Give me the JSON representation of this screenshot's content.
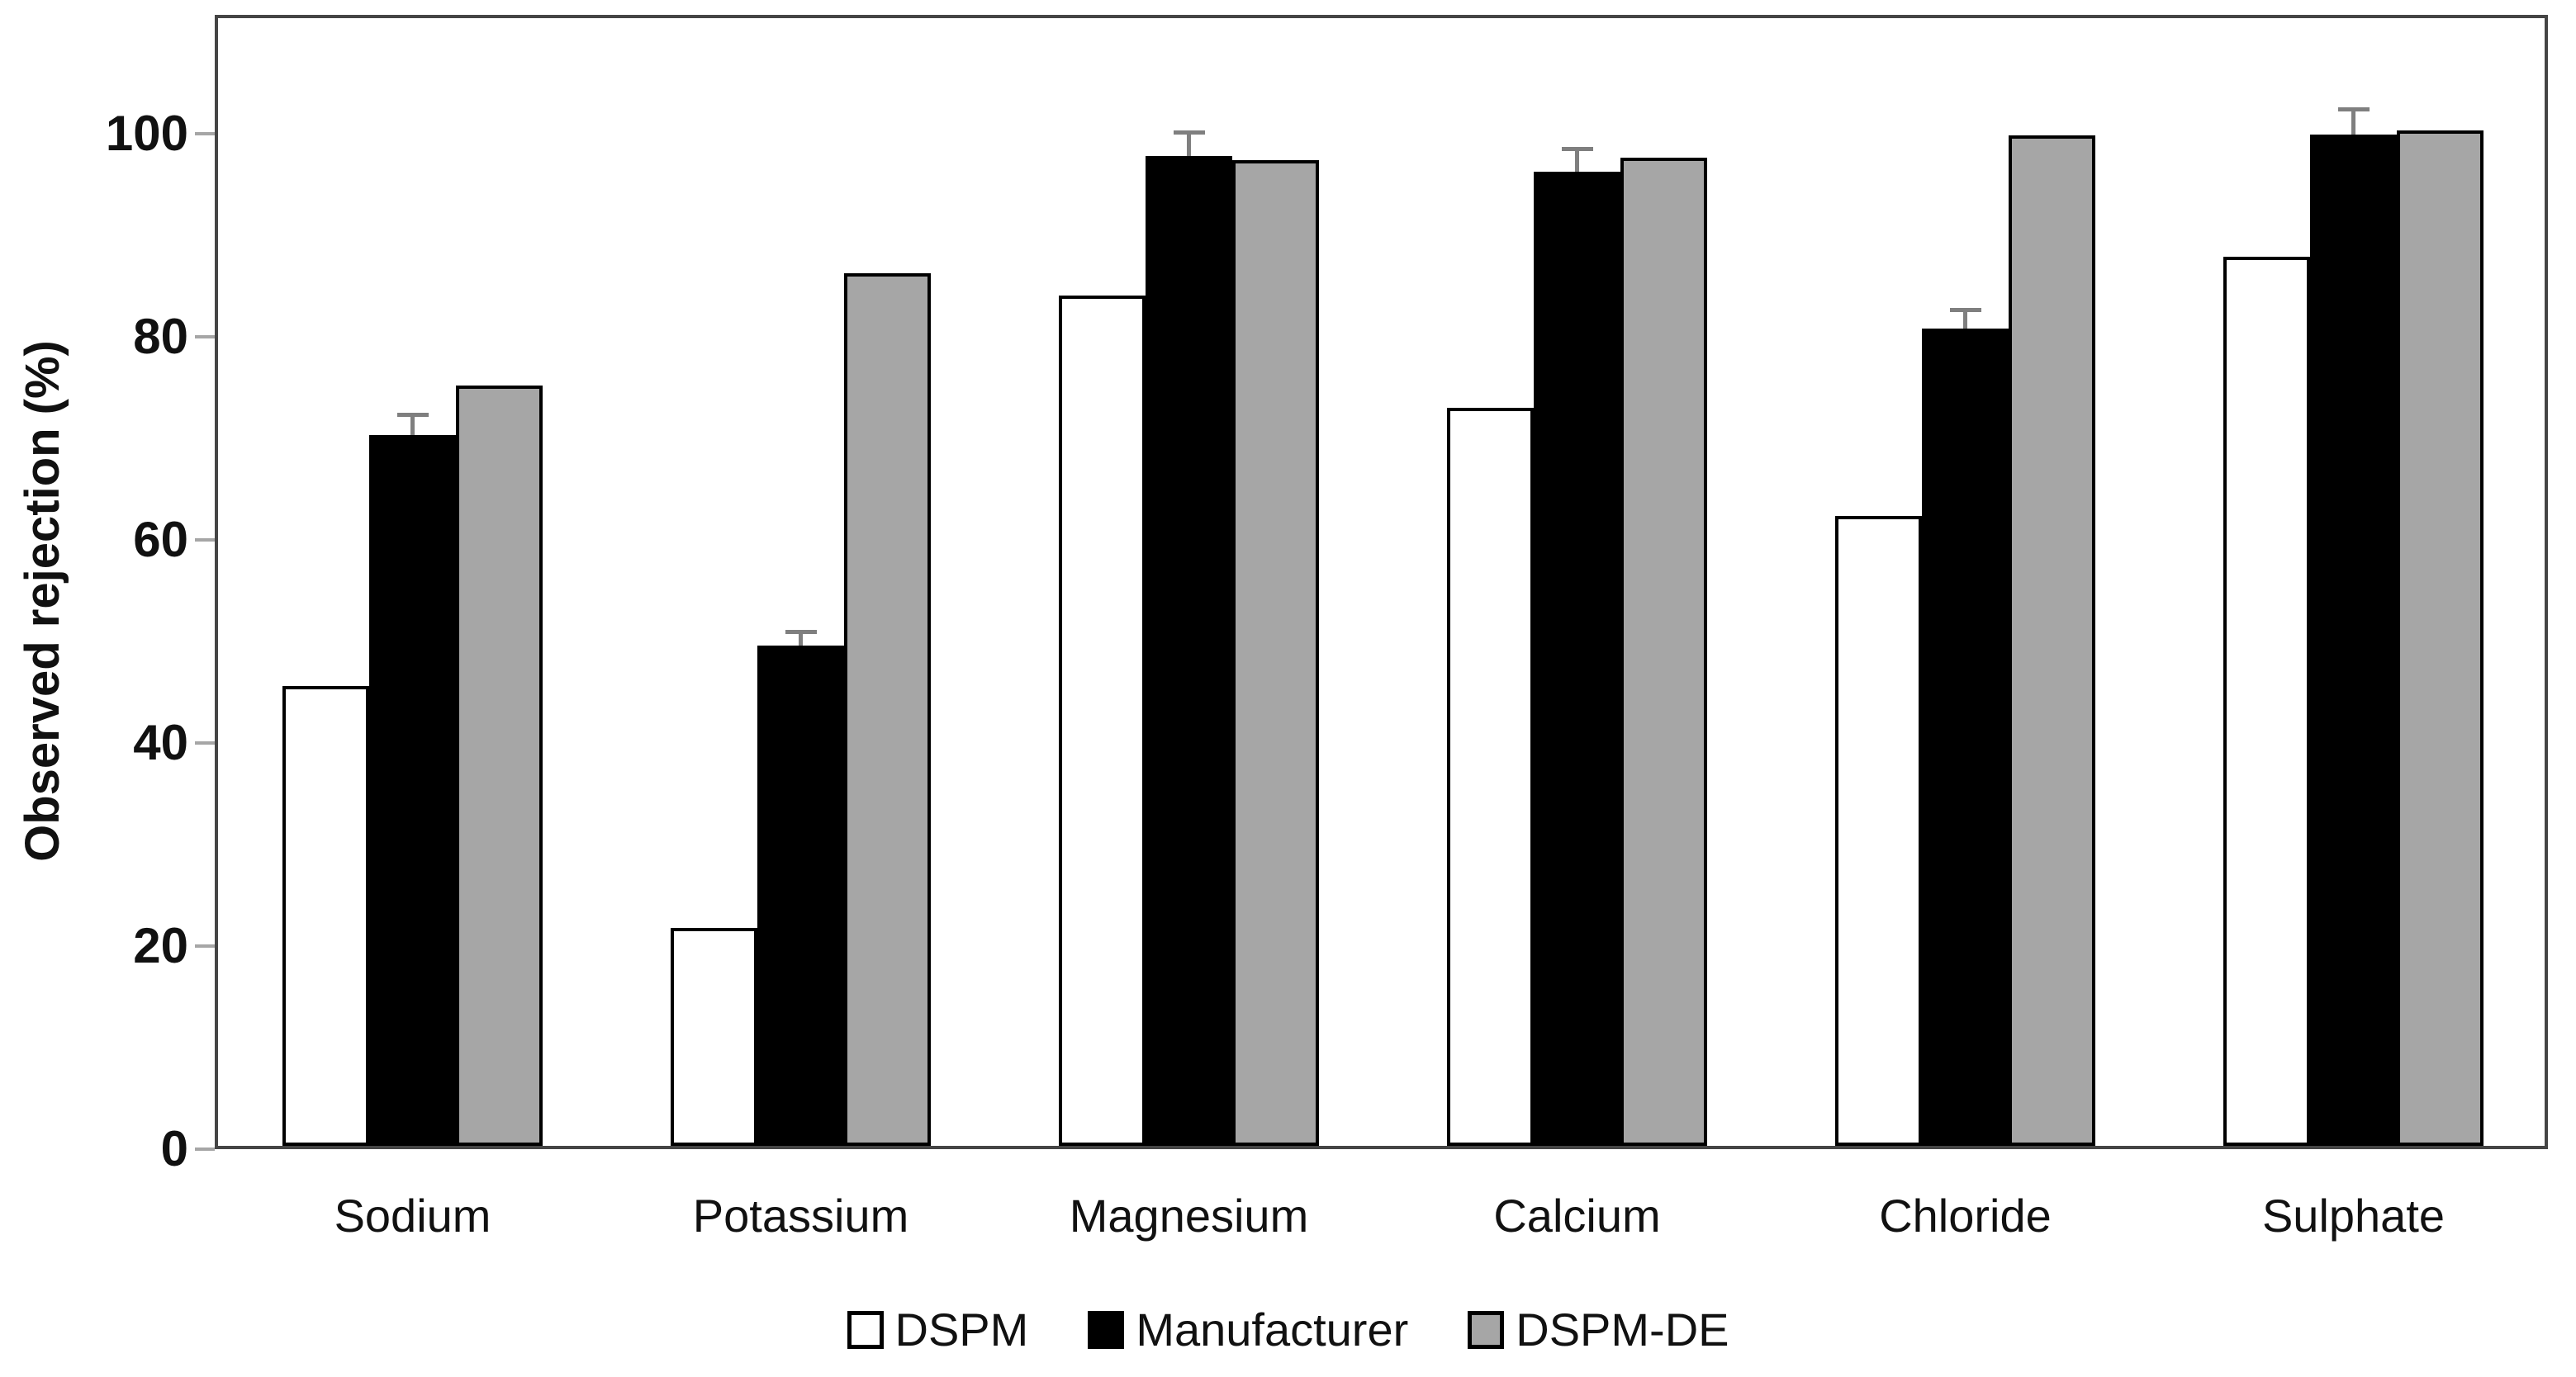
{
  "chart_data": {
    "type": "bar",
    "title": "",
    "xlabel": "",
    "ylabel": "Observed rejection (%)",
    "categories": [
      "Sodium",
      "Potassium",
      "Magnesium",
      "Calcium",
      "Chloride",
      "Sulphate"
    ],
    "series": [
      {
        "name": "DSPM",
        "fill": "#ffffff",
        "values": [
          45.3,
          21.5,
          83.7,
          72.7,
          62.0,
          87.6
        ]
      },
      {
        "name": "Manufacturer",
        "fill": "#000000",
        "values": [
          70.0,
          49.3,
          97.5,
          95.9,
          80.5,
          99.6
        ],
        "error_plus": [
          2.2,
          1.5,
          2.5,
          2.5,
          2.0,
          2.7
        ]
      },
      {
        "name": "DSPM-DE",
        "fill": "#a6a6a6",
        "values": [
          74.9,
          85.9,
          97.1,
          97.3,
          99.5,
          100.0
        ]
      }
    ],
    "yticks": [
      0,
      20,
      40,
      60,
      80,
      100
    ],
    "ytick_labels": [
      "0",
      "20",
      "40",
      "60",
      "80",
      "100"
    ],
    "ylim": [
      0,
      111
    ],
    "grid": false,
    "legend_position": "bottom",
    "bar_outline_color": "#000000",
    "error_bar_color": "#7f7f7f",
    "axis_box_color": "#454545",
    "tick_mark_color": "#a6a6a6",
    "text_color": "#111111"
  },
  "legend": {
    "items": [
      {
        "label": "DSPM",
        "fill": "#ffffff"
      },
      {
        "label": "Manufacturer",
        "fill": "#000000"
      },
      {
        "label": "DSPM-DE",
        "fill": "#a6a6a6"
      }
    ]
  }
}
